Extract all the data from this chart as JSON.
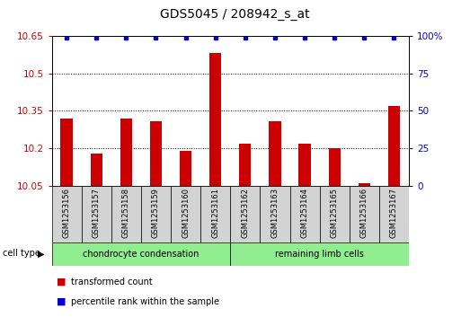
{
  "title": "GDS5045 / 208942_s_at",
  "samples": [
    "GSM1253156",
    "GSM1253157",
    "GSM1253158",
    "GSM1253159",
    "GSM1253160",
    "GSM1253161",
    "GSM1253162",
    "GSM1253163",
    "GSM1253164",
    "GSM1253165",
    "GSM1253166",
    "GSM1253167"
  ],
  "bar_values": [
    10.32,
    10.18,
    10.32,
    10.31,
    10.19,
    10.58,
    10.22,
    10.31,
    10.22,
    10.2,
    10.06,
    10.37
  ],
  "percentile_values": [
    99,
    99,
    99,
    99,
    99,
    99,
    99,
    99,
    99,
    99,
    99,
    99
  ],
  "bar_color": "#cc0000",
  "percentile_color": "#0000cc",
  "y_min": 10.05,
  "y_max": 10.65,
  "y_ticks": [
    10.05,
    10.2,
    10.35,
    10.5,
    10.65
  ],
  "y2_ticks": [
    0,
    25,
    50,
    75,
    100
  ],
  "y2_tick_labels": [
    "0",
    "25",
    "50",
    "75",
    "100%"
  ],
  "group1_label": "chondrocyte condensation",
  "group2_label": "remaining limb cells",
  "group1_count": 6,
  "group2_count": 6,
  "cell_type_label": "cell type",
  "legend_bar_label": "transformed count",
  "legend_dot_label": "percentile rank within the sample",
  "bg_color": "#d3d3d3",
  "group1_color": "#90ee90",
  "group2_color": "#90ee90",
  "title_fontsize": 10,
  "tick_fontsize": 7.5,
  "label_fontsize": 7
}
